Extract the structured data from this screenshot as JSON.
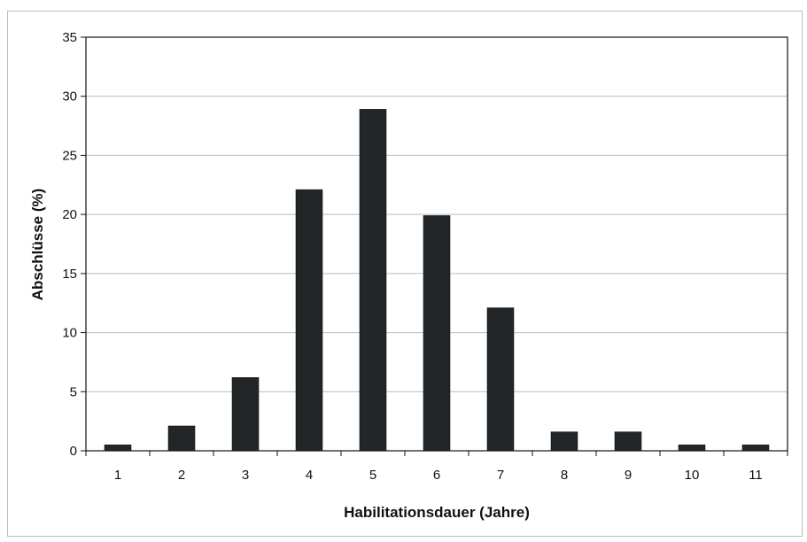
{
  "chart_data": {
    "type": "bar",
    "xlabel": "Habilitationsdauer (Jahre)",
    "ylabel": "Abschlüsse (%)",
    "categories": [
      "1",
      "2",
      "3",
      "4",
      "5",
      "6",
      "7",
      "8",
      "9",
      "10",
      "11"
    ],
    "values": [
      0.5,
      2.1,
      6.2,
      22.1,
      28.9,
      19.9,
      12.1,
      1.6,
      1.6,
      0.5,
      0.5
    ],
    "ylim": [
      0,
      35
    ],
    "yticks": [
      "0",
      "5",
      "10",
      "15",
      "20",
      "25",
      "30",
      "35"
    ],
    "grid": true,
    "legend": "none",
    "bar_color": "#222629",
    "grid_color": "#bcbcbc"
  }
}
